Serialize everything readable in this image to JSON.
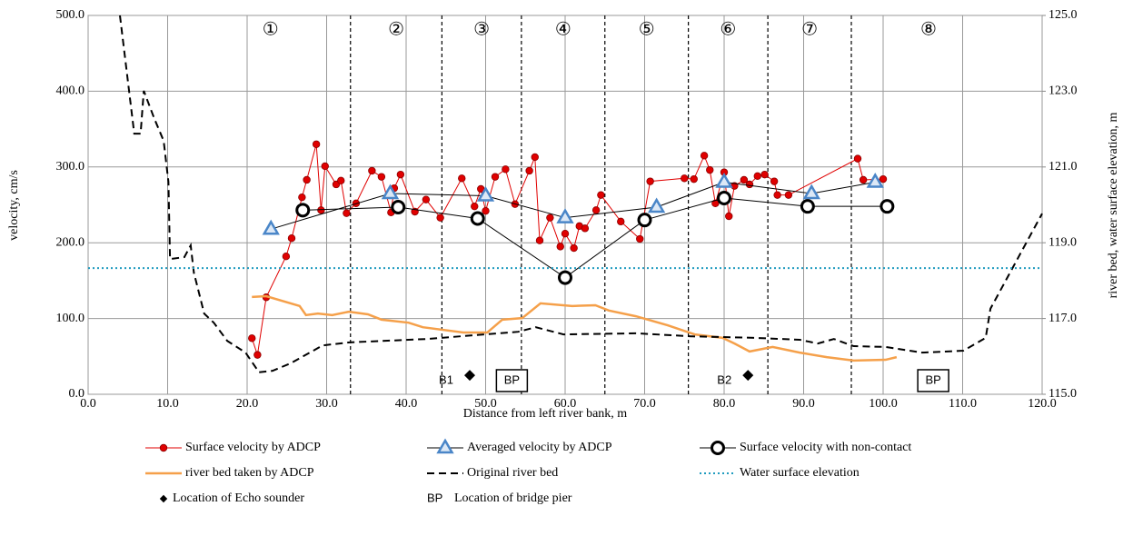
{
  "chart_data": {
    "type": "combo",
    "x_label": "Distance from left river bank, m",
    "y_label": "velocity, cm/s",
    "y2_label": "river bed, water surface elevation, m",
    "xlim": [
      0,
      120
    ],
    "xticks": [
      {
        "value": 0,
        "label": "0.0"
      },
      {
        "value": 10,
        "label": "10.0"
      },
      {
        "value": 20,
        "label": "20.0"
      },
      {
        "value": 30,
        "label": "30.0"
      },
      {
        "value": 40,
        "label": "40.0"
      },
      {
        "value": 50,
        "label": "50.0"
      },
      {
        "value": 60,
        "label": "60.0"
      },
      {
        "value": 70,
        "label": "70.0"
      },
      {
        "value": 80,
        "label": "80.0"
      },
      {
        "value": 90,
        "label": "90.0"
      },
      {
        "value": 100,
        "label": "100.0"
      },
      {
        "value": 110,
        "label": "110.0"
      },
      {
        "value": 120,
        "label": "120.0"
      }
    ],
    "ylim": [
      0,
      500
    ],
    "yticks": [
      {
        "value": 0,
        "label": "0.0"
      },
      {
        "value": 100,
        "label": "100.0"
      },
      {
        "value": 200,
        "label": "200.0"
      },
      {
        "value": 300,
        "label": "300.0"
      },
      {
        "value": 400,
        "label": "400.0"
      },
      {
        "value": 500,
        "label": "500.0"
      }
    ],
    "y2lim": [
      115,
      125
    ],
    "y2ticks": [
      {
        "value": 115,
        "label": "115.0"
      },
      {
        "value": 117,
        "label": "117.0"
      },
      {
        "value": 119,
        "label": "119.0"
      },
      {
        "value": 121,
        "label": "121.0"
      },
      {
        "value": 123,
        "label": "123.0"
      },
      {
        "value": 125,
        "label": "125.0"
      }
    ],
    "grid": true,
    "section_boundaries": [
      33,
      44.5,
      54.5,
      65,
      75.5,
      85.5,
      96
    ],
    "section_labels": [
      "①",
      "②",
      "③",
      "④",
      "⑤",
      "⑥",
      "⑦",
      "⑧"
    ],
    "series": [
      {
        "name": "Surface velocity by ADCP",
        "color": "#e00000",
        "line_color": "#e00000",
        "line": "solid",
        "marker": "circle",
        "axis": "y",
        "x": [
          20.6,
          21.3,
          22.4,
          24.9,
          25.6,
          26.9,
          27.5,
          28.7,
          29.3,
          29.8,
          31.2,
          31.8,
          32.5,
          33.7,
          35.7,
          36.9,
          38.1,
          38.5,
          39.3,
          41.1,
          42.5,
          44.3,
          47.0,
          48.6,
          49.4,
          50.0,
          51.2,
          52.5,
          53.7,
          55.5,
          56.2,
          56.8,
          58.1,
          59.4,
          60.0,
          61.1,
          61.8,
          62.5,
          63.9,
          64.5,
          67.0,
          69.4,
          70.7,
          75.0,
          76.2,
          77.5,
          78.2,
          78.9,
          80.0,
          80.6,
          81.3,
          82.5,
          83.2,
          84.2,
          85.1,
          86.3,
          86.7,
          88.1,
          96.8,
          97.5,
          100.0
        ],
        "values": [
          74,
          52,
          128,
          182,
          206,
          260,
          283,
          330,
          243,
          301,
          277,
          282,
          239,
          252,
          295,
          287,
          240,
          272,
          290,
          241,
          257,
          233,
          285,
          248,
          271,
          242,
          287,
          297,
          251,
          295,
          313,
          203,
          233,
          195,
          212,
          193,
          222,
          219,
          243,
          263,
          228,
          205,
          281,
          285,
          284,
          315,
          296,
          252,
          293,
          235,
          275,
          283,
          277,
          288,
          290,
          281,
          263,
          263,
          311,
          283,
          284
        ]
      },
      {
        "name": "Averaged velocity by ADCP",
        "color": "#4a86c8",
        "line_color": "#000000",
        "line": "solid",
        "marker": "triangle",
        "axis": "y",
        "x": [
          23,
          38,
          50,
          60,
          71.5,
          80,
          91,
          99
        ],
        "values": [
          218,
          265,
          262,
          233,
          247,
          280,
          265,
          280
        ]
      },
      {
        "name": "Surface velocity with non-contact",
        "color": "#000000",
        "line_color": "#000000",
        "line": "solid",
        "marker": "ring",
        "axis": "y",
        "x": [
          27,
          39,
          49,
          60,
          70,
          80,
          90.5,
          100.5
        ],
        "values": [
          243,
          247,
          232,
          154,
          230,
          259,
          248,
          248
        ]
      },
      {
        "name": "river bed taken by ADCP",
        "color": "#f5a04a",
        "line_color": "#f5a04a",
        "line": "thick",
        "marker": "none",
        "axis": "y2",
        "x": [
          20.6,
          22.4,
          26.6,
          27.4,
          28.9,
          30.7,
          32.8,
          35.2,
          36.9,
          40.3,
          42.1,
          47.2,
          50.2,
          52.1,
          54.6,
          56.9,
          60.9,
          63.8,
          65.5,
          68.9,
          72.9,
          76.3,
          79.8,
          81.3,
          83.2,
          86.1,
          89.5,
          92.9,
          96.3,
          100.3,
          101.7
        ],
        "values": [
          117.57,
          117.59,
          117.33,
          117.09,
          117.13,
          117.09,
          117.18,
          117.11,
          116.97,
          116.89,
          116.77,
          116.63,
          116.63,
          116.97,
          117.01,
          117.4,
          117.33,
          117.35,
          117.21,
          117.06,
          116.82,
          116.58,
          116.49,
          116.34,
          116.13,
          116.25,
          116.1,
          115.98,
          115.89,
          115.91,
          115.98
        ]
      },
      {
        "name": "Original river bed",
        "color": "#000000",
        "line_color": "#000000",
        "line": "dashed",
        "marker": "none",
        "axis": "y2",
        "x": [
          4.0,
          5.8,
          6.6,
          7.0,
          8.3,
          9.5,
          10.1,
          10.3,
          12.1,
          12.9,
          13.3,
          14.6,
          15.8,
          17.5,
          19.8,
          21.5,
          23.2,
          25.5,
          29.5,
          32.9,
          42.6,
          54.1,
          56.3,
          59.8,
          68.9,
          75.8,
          83.8,
          89.5,
          91.8,
          93.8,
          96.3,
          100.3,
          104.9,
          110.1,
          112.9,
          113.5,
          120.0
        ],
        "values": [
          125.0,
          121.88,
          121.88,
          123.01,
          122.29,
          121.69,
          120.61,
          118.57,
          118.62,
          118.93,
          118.21,
          117.13,
          116.89,
          116.41,
          116.1,
          115.58,
          115.62,
          115.82,
          116.29,
          116.37,
          116.46,
          116.65,
          116.77,
          116.58,
          116.61,
          116.53,
          116.49,
          116.44,
          116.34,
          116.46,
          116.27,
          116.25,
          116.1,
          116.15,
          116.49,
          117.26,
          119.77
        ]
      },
      {
        "name": "Water surface elevation",
        "color": "#1f9bbf",
        "line_color": "#1f9bbf",
        "line": "dotted",
        "marker": "none",
        "axis": "y2",
        "x": [
          0,
          120
        ],
        "values": [
          118.33,
          118.33
        ]
      },
      {
        "name": "Location of Echo sounder",
        "color": "#000000",
        "line": "none",
        "marker": "diamond",
        "axis": "y",
        "x": [
          48,
          83
        ],
        "values": [
          25,
          25
        ],
        "point_labels": [
          "B1",
          "B2"
        ]
      },
      {
        "name": "Location of bridge pier",
        "color": "#000000",
        "line": "none",
        "marker": "box-text",
        "marker_text": "BP",
        "axis": "y",
        "x": [
          53.3,
          106.3
        ],
        "values": [
          18,
          18
        ]
      }
    ]
  }
}
